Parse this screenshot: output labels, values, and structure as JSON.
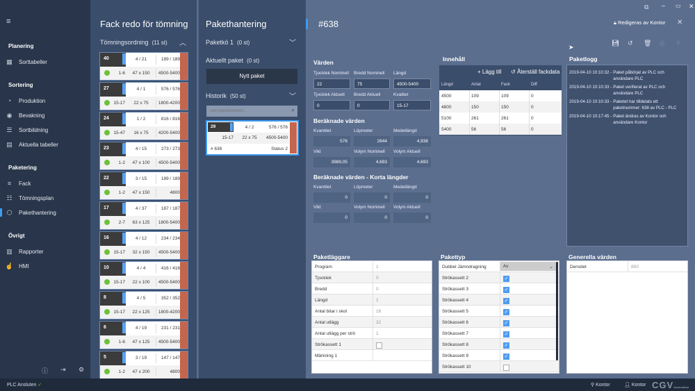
{
  "sidebar": {
    "sections": [
      {
        "title": "Planering",
        "items": [
          {
            "label": "Sorttabeller",
            "icon": "table-icon",
            "glyph": "▦"
          }
        ]
      },
      {
        "title": "Sortering",
        "items": [
          {
            "label": "Produktion",
            "icon": "gauge-icon",
            "glyph": "◔"
          },
          {
            "label": "Bevakning",
            "icon": "eye-icon",
            "glyph": "◉"
          },
          {
            "label": "Sortbildning",
            "icon": "lines-icon",
            "glyph": "☰"
          },
          {
            "label": "Aktuella tabeller",
            "icon": "table-settings-icon",
            "glyph": "▤"
          }
        ]
      },
      {
        "title": "Paketering",
        "items": [
          {
            "label": "Fack",
            "icon": "list-icon",
            "glyph": "≡"
          },
          {
            "label": "Tömningsplan",
            "icon": "ordered-list-icon",
            "glyph": "☷"
          },
          {
            "label": "Pakethantering",
            "icon": "package-icon",
            "glyph": "⬡",
            "active": true
          }
        ]
      },
      {
        "title": "Övrigt",
        "items": [
          {
            "label": "Rapporter",
            "icon": "bar-chart-icon",
            "glyph": "▥"
          },
          {
            "label": "HMI",
            "icon": "hand-icon",
            "glyph": "☝"
          }
        ]
      }
    ]
  },
  "status": {
    "plc": "PLC Ansluten",
    "location": "Kontor",
    "user": "Kontor",
    "logo": "CGV Automation"
  },
  "fack": {
    "title": "Fack redo för tömning",
    "order_label": "Tömningsordning",
    "order_count": "(11 st)",
    "cards": [
      [
        "40",
        "4 / 21",
        "189 / 189",
        "1-6",
        "47 x 150",
        "4500-5400"
      ],
      [
        "27",
        "4 / 1",
        "576 / 576",
        "15-17",
        "22 x 75",
        "1800-4200"
      ],
      [
        "24",
        "1 / 2",
        "816 / 816",
        "15-47",
        "16 x 75",
        "4200-5400"
      ],
      [
        "23",
        "4 / 15",
        "273 / 273",
        "1-2",
        "47 x 100",
        "4500-5400"
      ],
      [
        "22",
        "3 / 15",
        "189 / 189",
        "1-2",
        "47 x 150",
        "4800"
      ],
      [
        "17",
        "4 / 37",
        "187 / 187",
        "2-7",
        "63 x 125",
        "1800-5400"
      ],
      [
        "16",
        "4 / 12",
        "234 / 234",
        "15-17",
        "32 x 150",
        "4500-5400"
      ],
      [
        "10",
        "4 / 4",
        "416 / 416",
        "15-17",
        "22 x 100",
        "4500-5400"
      ],
      [
        "8",
        "4 / 5",
        "352 / 352",
        "15-17",
        "22 x 125",
        "1800-4200"
      ],
      [
        "6",
        "4 / 19",
        "231 / 231",
        "1-6",
        "47 x 125",
        "4500-5400"
      ],
      [
        "5",
        "3 / 19",
        "147 / 147",
        "1-2",
        "47 x 200",
        "4800"
      ]
    ]
  },
  "paket": {
    "title": "Pakethantering",
    "queue": "Paketkö 1",
    "queue_count": "(0 st)",
    "current": "Aktuellt paket",
    "current_count": "(0 st)",
    "new_btn": "Nytt paket",
    "history": "Historik",
    "history_count": "(50 st)",
    "search_placeholder": "Sök paketnummer...",
    "hist_card": {
      "num": "29",
      "a": "4 / 2",
      "b": "576 / 576",
      "c": "15-17",
      "d": "22 x 75",
      "e": "4500-5400",
      "id": "# 638",
      "status": "Status 2"
    }
  },
  "main": {
    "title": "#638",
    "lock": "Redigeras av Kontor",
    "values_h": "Värden",
    "values": [
      [
        "Tjocklek Nominell",
        "22"
      ],
      [
        "Bredd Nominell",
        "75"
      ],
      [
        "Längd",
        "4500-5400"
      ],
      [
        "Tjocklek Aktuell",
        "0"
      ],
      [
        "Bredd Aktuell",
        "0"
      ],
      [
        "Kvalitet",
        "15-17"
      ]
    ],
    "calc_h": "Beräknade värden",
    "calc": [
      [
        "Kvantitet",
        "576"
      ],
      [
        "Löpmeter",
        "2844"
      ],
      [
        "Medellängd",
        "4,938"
      ],
      [
        "Vikt",
        "3989,05"
      ],
      [
        "Volym Nominell",
        "4,693"
      ],
      [
        "Volym Aktuell",
        "4,693"
      ]
    ],
    "short_h": "Beräknade värden - Korta längder",
    "short": [
      [
        "Kvantitet",
        "0"
      ],
      [
        "Löpmeter",
        "0"
      ],
      [
        "Medellängd",
        "0"
      ],
      [
        "Vikt",
        "0"
      ],
      [
        "Volym Nominell",
        "0"
      ],
      [
        "Volym Aktuell",
        "0"
      ]
    ],
    "content_h": "Innehåll",
    "add": "Lägg till",
    "reset": "Återställ fackdata",
    "content_cols": [
      "Längd",
      "Antal",
      "Fack",
      "Diff"
    ],
    "content_rows": [
      [
        "4500",
        "109",
        "109",
        "0"
      ],
      [
        "4800",
        "150",
        "150",
        "0"
      ],
      [
        "5100",
        "261",
        "261",
        "0"
      ],
      [
        "5400",
        "56",
        "56",
        "0"
      ]
    ],
    "log_h": "Paketlogg",
    "log": [
      [
        "2019-04-10 10:10:32 -",
        "Paket påbörjat av PLC och användare PLC"
      ],
      [
        "2019-04-10 10:10:33 -",
        "Paket verifierat av PLC och användare PLC"
      ],
      [
        "2019-04-10 10:10:33 -",
        "Paketet har tilldelats ett paketnummer: 638 av PLC - PLC"
      ],
      [
        "2019-04-10 10:17:45 -",
        "Paket ändras av Kontor och användare Kontor"
      ]
    ],
    "layer_h": "Paketläggare",
    "layer": [
      [
        "Program",
        "1"
      ],
      [
        "Tjocklek",
        "0"
      ],
      [
        "Bredd",
        "0"
      ],
      [
        "Längd",
        "1"
      ],
      [
        "Antal bitar i skot",
        "18"
      ],
      [
        "Antal utlägg",
        "32"
      ],
      [
        "Antal utlägg per strö",
        "1"
      ],
      [
        "Strökassett 1",
        false
      ],
      [
        "Märkning 1",
        ""
      ]
    ],
    "type_h": "Pakettyp",
    "type_first": [
      "Dubbel Jämndragning",
      "Av"
    ],
    "type": [
      [
        "Strökassett 2",
        true
      ],
      [
        "Strökassett 3",
        true
      ],
      [
        "Strökassett 4",
        true
      ],
      [
        "Strökassett 5",
        true
      ],
      [
        "Strökassett 6",
        true
      ],
      [
        "Strökassett 7",
        true
      ],
      [
        "Strökassett 8",
        true
      ],
      [
        "Strökassett 9",
        true
      ],
      [
        "Strökassett 10",
        false
      ]
    ],
    "general_h": "Generella värden",
    "general": [
      [
        "Densitet",
        "850"
      ]
    ]
  }
}
